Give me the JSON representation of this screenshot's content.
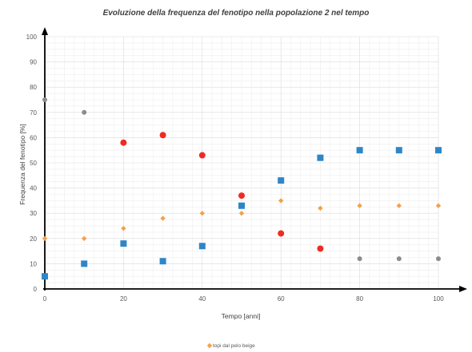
{
  "chart_data": {
    "type": "scatter",
    "title": "Evoluzione della frequenza del fenotipo nella popolazione 2 nel tempo",
    "xlabel": "Tempo [anni]",
    "ylabel": "Frequenza del fenotipo [%]",
    "xlim": [
      0,
      100
    ],
    "ylim": [
      0,
      100
    ],
    "xticks": [
      0,
      20,
      40,
      60,
      80,
      100
    ],
    "yticks": [
      0,
      10,
      20,
      30,
      40,
      50,
      60,
      70,
      80,
      90,
      100
    ],
    "grid": true,
    "legend_position": "bottom",
    "series": [
      {
        "name": "topi dal pelo beige",
        "marker": "diamond",
        "color": "#f5a04a",
        "points": [
          [
            0,
            20
          ],
          [
            10,
            20
          ],
          [
            20,
            24
          ],
          [
            30,
            28
          ],
          [
            40,
            30
          ],
          [
            50,
            30
          ],
          [
            60,
            35
          ],
          [
            70,
            32
          ],
          [
            80,
            33
          ],
          [
            90,
            33
          ],
          [
            100,
            33
          ]
        ]
      },
      {
        "marker": "square",
        "color": "#2e86c8",
        "points": [
          [
            0,
            5
          ],
          [
            10,
            10
          ],
          [
            20,
            18
          ],
          [
            30,
            11
          ],
          [
            40,
            17
          ],
          [
            50,
            33
          ],
          [
            60,
            43
          ],
          [
            70,
            52
          ],
          [
            80,
            55
          ],
          [
            90,
            55
          ],
          [
            100,
            55
          ]
        ]
      },
      {
        "marker": "circle",
        "color": "#ef2b22",
        "points": [
          [
            20,
            58
          ],
          [
            30,
            61
          ],
          [
            40,
            53
          ],
          [
            50,
            37
          ],
          [
            60,
            22
          ],
          [
            70,
            16
          ]
        ]
      },
      {
        "marker": "circle",
        "color": "#8c8c8c",
        "points": [
          [
            0,
            75
          ],
          [
            10,
            70
          ],
          [
            80,
            12
          ],
          [
            90,
            12
          ],
          [
            100,
            12
          ]
        ]
      }
    ]
  }
}
